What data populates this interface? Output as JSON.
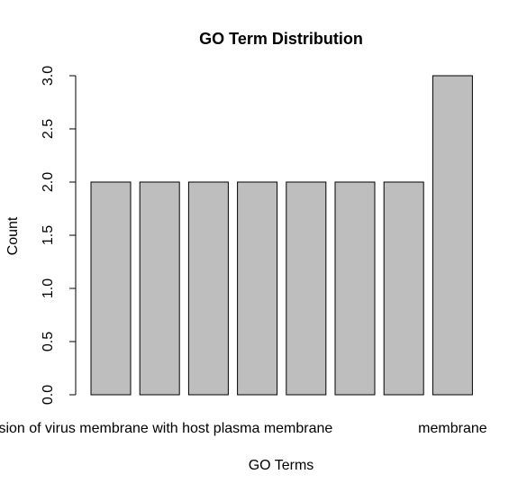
{
  "chart_data": {
    "type": "bar",
    "title": "GO Term Distribution",
    "xlabel": "GO Terms",
    "ylabel": "Count",
    "ylim": [
      0,
      3.0
    ],
    "yticks": [
      "0.0",
      "0.5",
      "1.0",
      "1.5",
      "2.0",
      "2.5",
      "3.0"
    ],
    "values": [
      2,
      2,
      2,
      2,
      2,
      2,
      2,
      3
    ],
    "visible_category_labels": [
      {
        "text": "fusion of virus membrane with host plasma membrane",
        "bar_index": 1
      },
      {
        "text": "membrane",
        "bar_index": 7
      }
    ],
    "bar_color": "#bebebe",
    "grid": false
  }
}
